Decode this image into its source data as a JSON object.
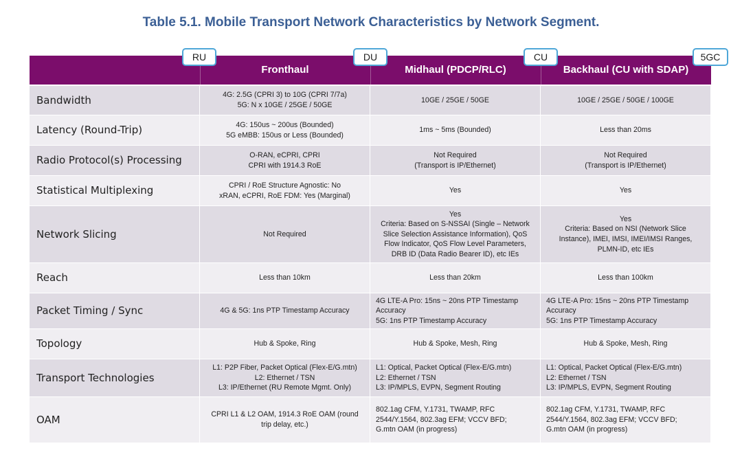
{
  "title": "Table 5.1. Mobile Transport Network Characteristics by Network Segment.",
  "nodes": [
    "RU",
    "DU",
    "CU",
    "5GC"
  ],
  "headers": [
    "Fronthaul",
    "Midhaul (PDCP/RLC)",
    "Backhaul (CU with SDAP)"
  ],
  "rows": [
    {
      "label": "Bandwidth",
      "c1": [
        "4G: 2.5G (CPRI 3) to 10G (CPRI 7/7a)",
        "5G: N x 10GE / 25GE / 50GE"
      ],
      "c2": [
        "10GE / 25GE / 50GE"
      ],
      "c3": [
        "10GE / 25GE / 50GE / 100GE"
      ]
    },
    {
      "label": "Latency (Round-Trip)",
      "c1": [
        "4G: 150us ~ 200us (Bounded)",
        "5G eMBB: 150us or Less (Bounded)"
      ],
      "c2": [
        "1ms ~ 5ms (Bounded)"
      ],
      "c3": [
        "Less than 20ms"
      ]
    },
    {
      "label": "Radio Protocol(s) Processing",
      "c1": [
        "O-RAN, eCPRI, CPRI",
        "CPRI with 1914.3 RoE"
      ],
      "c2": [
        "Not Required",
        "(Transport is IP/Ethernet)"
      ],
      "c3": [
        "Not Required",
        "(Transport is IP/Ethernet)"
      ]
    },
    {
      "label": "Statistical Multiplexing",
      "c1": [
        "CPRI / RoE Structure Agnostic: No",
        "xRAN, eCPRI, RoE FDM: Yes (Marginal)"
      ],
      "c2": [
        "Yes"
      ],
      "c3": [
        "Yes"
      ]
    },
    {
      "label": "Network Slicing",
      "c1": [
        "Not Required"
      ],
      "c2": [
        "Yes",
        "Criteria: Based on S-NSSAI (Single – Network",
        "Slice Selection Assistance Information), QoS",
        "Flow Indicator, QoS Flow Level Parameters,",
        "DRB ID (Data Radio Bearer ID), etc IEs"
      ],
      "c3": [
        "Yes",
        "Criteria: Based on NSI (Network Slice",
        "Instance), IMEI, IMSI, IMEI/IMSI Ranges,",
        "PLMN-ID, etc IEs"
      ]
    },
    {
      "label": "Reach",
      "c1": [
        "Less than 10km"
      ],
      "c2": [
        "Less than 20km"
      ],
      "c3": [
        "Less than 100km"
      ]
    },
    {
      "label": "Packet Timing / Sync",
      "c1": [
        "4G & 5G: 1ns PTP Timestamp Accuracy"
      ],
      "c2": [
        "4G LTE-A Pro: 15ns ~ 20ns PTP Timestamp",
        "Accuracy",
        "5G: 1ns PTP Timestamp Accuracy"
      ],
      "c3": [
        "4G LTE-A Pro: 15ns ~ 20ns PTP Timestamp",
        "Accuracy",
        "5G: 1ns PTP Timestamp Accuracy"
      ]
    },
    {
      "label": "Topology",
      "c1": [
        "Hub & Spoke, Ring"
      ],
      "c2": [
        "Hub & Spoke, Mesh, Ring"
      ],
      "c3": [
        "Hub & Spoke, Mesh, Ring"
      ]
    },
    {
      "label": "Transport Technologies",
      "c1": [
        "L1: P2P Fiber, Packet Optical (Flex-E/G.mtn)",
        "L2: Ethernet / TSN",
        "L3: IP/Ethernet (RU Remote Mgmt. Only)"
      ],
      "c2": [
        "L1: Optical, Packet Optical (Flex-E/G.mtn)",
        "L2: Ethernet / TSN",
        "L3: IP/MPLS, EVPN, Segment Routing"
      ],
      "c3": [
        "L1: Optical, Packet Optical (Flex-E/G.mtn)",
        "L2: Ethernet / TSN",
        "L3: IP/MPLS, EVPN, Segment Routing"
      ]
    },
    {
      "label": "OAM",
      "c1": [
        "CPRI L1 & L2 OAM, 1914.3 RoE OAM (round",
        "trip delay, etc.)"
      ],
      "c2": [
        "802.1ag CFM, Y.1731, TWAMP, RFC",
        "2544/Y.1564, 802.3ag EFM; VCCV BFD;",
        "G.mtn OAM (in progress)"
      ],
      "c3": [
        "802.1ag CFM, Y.1731, TWAMP, RFC",
        "2544/Y.1564, 802.3ag EFM; VCCV BFD;",
        "G.mtn OAM (in progress)"
      ]
    }
  ]
}
